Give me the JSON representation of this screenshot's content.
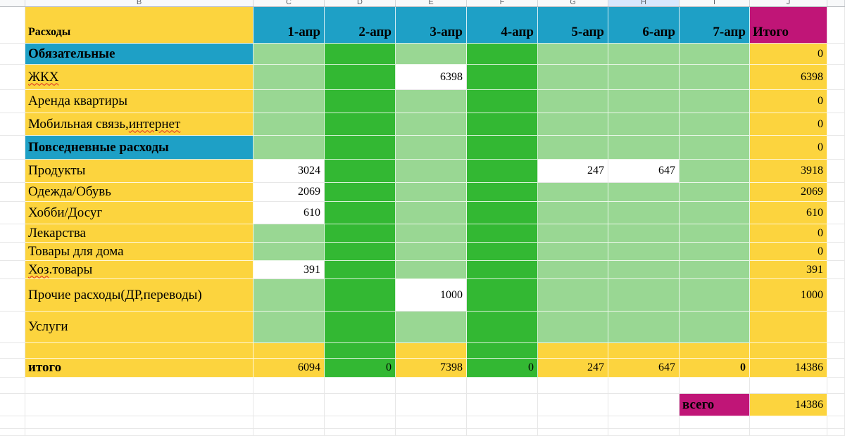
{
  "sheet": {
    "selected_column_letter": "H",
    "column_letters": [
      "",
      "B",
      "C",
      "D",
      "E",
      "F",
      "G",
      "H",
      "I",
      "J",
      ""
    ],
    "colors": {
      "yellow": "#fcd43e",
      "blue": "#1ea0c6",
      "magenta": "#c01577",
      "dark_green": "#33b833",
      "light_green": "#99d793",
      "white": "#ffffff",
      "grid": "#e7e7e7",
      "strip_bg": "#f8f9fa",
      "strip_selected": "#d8e7fd",
      "strip_text": "#5f6368"
    },
    "header": {
      "expenses_label": "Расходы",
      "date_labels": [
        "1-апр",
        "2-апр",
        "3-апр",
        "4-апр",
        "5-апр",
        "6-апр",
        "7-апр"
      ],
      "total_label": "Итого"
    },
    "rows": [
      {
        "id": "obligatory-section",
        "style": "section",
        "label_parts": [
          {
            "t": "Обязательные",
            "w": false
          }
        ],
        "cells": [
          {
            "bg": "lg"
          },
          {
            "bg": "dg"
          },
          {
            "bg": "lg"
          },
          {
            "bg": "dg"
          },
          {
            "bg": "lg"
          },
          {
            "bg": "lg"
          },
          {
            "bg": "lg"
          }
        ],
        "total": "0"
      },
      {
        "id": "zhkh",
        "style": "item",
        "label_parts": [
          {
            "t": "ЖКХ",
            "w": true
          }
        ],
        "cells": [
          {
            "bg": "lg"
          },
          {
            "bg": "dg"
          },
          {
            "bg": "w",
            "v": "6398"
          },
          {
            "bg": "dg"
          },
          {
            "bg": "lg"
          },
          {
            "bg": "lg"
          },
          {
            "bg": "lg"
          }
        ],
        "total": "6398"
      },
      {
        "id": "rent",
        "style": "item",
        "label_parts": [
          {
            "t": "Аренда квартиры",
            "w": false
          }
        ],
        "cells": [
          {
            "bg": "lg"
          },
          {
            "bg": "dg"
          },
          {
            "bg": "lg"
          },
          {
            "bg": "dg"
          },
          {
            "bg": "lg"
          },
          {
            "bg": "lg"
          },
          {
            "bg": "lg"
          }
        ],
        "total": "0"
      },
      {
        "id": "mobile-internet",
        "style": "item",
        "label_parts": [
          {
            "t": "Мобильная связь, ",
            "w": false
          },
          {
            "t": "интернет",
            "w": true
          }
        ],
        "cells": [
          {
            "bg": "lg"
          },
          {
            "bg": "dg"
          },
          {
            "bg": "lg"
          },
          {
            "bg": "dg"
          },
          {
            "bg": "lg"
          },
          {
            "bg": "lg"
          },
          {
            "bg": "lg"
          }
        ],
        "total": "0"
      },
      {
        "id": "daily-section",
        "style": "section",
        "label_parts": [
          {
            "t": "Повседневные расходы",
            "w": false
          }
        ],
        "cells": [
          {
            "bg": "lg"
          },
          {
            "bg": "dg"
          },
          {
            "bg": "lg"
          },
          {
            "bg": "dg"
          },
          {
            "bg": "lg"
          },
          {
            "bg": "lg"
          },
          {
            "bg": "lg"
          }
        ],
        "total": "0"
      },
      {
        "id": "products",
        "style": "item",
        "label_parts": [
          {
            "t": "Продукты",
            "w": false
          }
        ],
        "cells": [
          {
            "bg": "w",
            "v": "3024"
          },
          {
            "bg": "dg"
          },
          {
            "bg": "lg"
          },
          {
            "bg": "dg"
          },
          {
            "bg": "w",
            "v": "247"
          },
          {
            "bg": "w",
            "v": "647"
          },
          {
            "bg": "lg"
          }
        ],
        "total": "3918"
      },
      {
        "id": "clothes-shoes",
        "style": "item",
        "label_parts": [
          {
            "t": "Одежда/Обувь",
            "w": false
          }
        ],
        "cells": [
          {
            "bg": "w",
            "v": "2069"
          },
          {
            "bg": "dg"
          },
          {
            "bg": "lg"
          },
          {
            "bg": "dg"
          },
          {
            "bg": "lg"
          },
          {
            "bg": "lg"
          },
          {
            "bg": "lg"
          }
        ],
        "total": "2069"
      },
      {
        "id": "hobby-leisure",
        "style": "item",
        "label_parts": [
          {
            "t": "Хобби/Досуг",
            "w": false
          }
        ],
        "cells": [
          {
            "bg": "w",
            "v": "610"
          },
          {
            "bg": "dg"
          },
          {
            "bg": "lg"
          },
          {
            "bg": "dg"
          },
          {
            "bg": "lg"
          },
          {
            "bg": "lg"
          },
          {
            "bg": "lg"
          }
        ],
        "total": "610"
      },
      {
        "id": "medicine",
        "style": "item",
        "label_parts": [
          {
            "t": "Лекарства",
            "w": false
          }
        ],
        "cells": [
          {
            "bg": "lg"
          },
          {
            "bg": "dg"
          },
          {
            "bg": "lg"
          },
          {
            "bg": "dg"
          },
          {
            "bg": "lg"
          },
          {
            "bg": "lg"
          },
          {
            "bg": "lg"
          }
        ],
        "total": "0"
      },
      {
        "id": "home-goods",
        "style": "item",
        "label_parts": [
          {
            "t": "Товары для дома",
            "w": false
          }
        ],
        "cells": [
          {
            "bg": "lg"
          },
          {
            "bg": "dg"
          },
          {
            "bg": "lg"
          },
          {
            "bg": "dg"
          },
          {
            "bg": "lg"
          },
          {
            "bg": "lg"
          },
          {
            "bg": "lg"
          }
        ],
        "total": "0"
      },
      {
        "id": "household-goods",
        "style": "item",
        "label_parts": [
          {
            "t": "Хоз",
            "w": true
          },
          {
            "t": ".товары",
            "w": false
          }
        ],
        "cells": [
          {
            "bg": "w",
            "v": "391"
          },
          {
            "bg": "dg"
          },
          {
            "bg": "lg"
          },
          {
            "bg": "dg"
          },
          {
            "bg": "lg"
          },
          {
            "bg": "lg"
          },
          {
            "bg": "lg"
          }
        ],
        "total": "391"
      },
      {
        "id": "other-expenses",
        "style": "item",
        "label_parts": [
          {
            "t": "Прочие расходы(ДР,переводы)",
            "w": false
          }
        ],
        "cells": [
          {
            "bg": "lg"
          },
          {
            "bg": "dg"
          },
          {
            "bg": "w",
            "v": "1000"
          },
          {
            "bg": "dg"
          },
          {
            "bg": "lg"
          },
          {
            "bg": "lg"
          },
          {
            "bg": "lg"
          }
        ],
        "total": "1000"
      },
      {
        "id": "services",
        "style": "item",
        "label_parts": [
          {
            "t": "Услуги",
            "w": false
          }
        ],
        "cells": [
          {
            "bg": "lg"
          },
          {
            "bg": "dg"
          },
          {
            "bg": "lg"
          },
          {
            "bg": "dg"
          },
          {
            "bg": "lg"
          },
          {
            "bg": "lg"
          },
          {
            "bg": "lg"
          }
        ],
        "total": ""
      },
      {
        "id": "spacer",
        "style": "spacer",
        "label_parts": [],
        "cells": [
          {
            "bg": "y"
          },
          {
            "bg": "dg"
          },
          {
            "bg": "y"
          },
          {
            "bg": "dg"
          },
          {
            "bg": "y"
          },
          {
            "bg": "y"
          },
          {
            "bg": "y"
          }
        ],
        "total": ""
      },
      {
        "id": "itogo",
        "style": "total-row",
        "label_parts": [
          {
            "t": "итого",
            "w": false
          }
        ],
        "cells": [
          {
            "bg": "y",
            "v": "6094"
          },
          {
            "bg": "dg",
            "v": "0"
          },
          {
            "bg": "y",
            "v": "7398"
          },
          {
            "bg": "dg",
            "v": "0"
          },
          {
            "bg": "y",
            "v": "247"
          },
          {
            "bg": "y",
            "v": "647"
          },
          {
            "bg": "y",
            "v": "0",
            "bold": true
          }
        ],
        "total": "14386"
      }
    ],
    "grand_total": {
      "label": "всего",
      "value": "14386"
    }
  }
}
